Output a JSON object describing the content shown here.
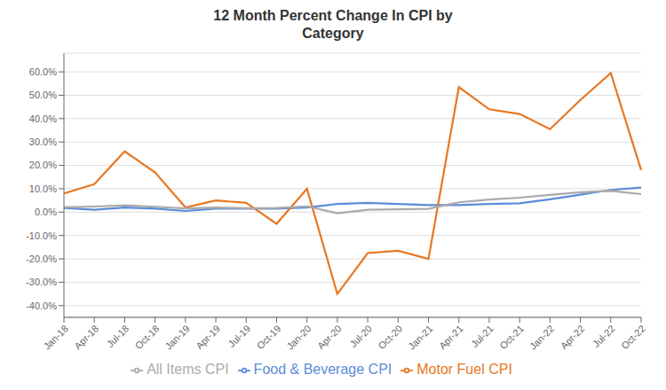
{
  "chart_data": {
    "type": "line",
    "title": "12 Month Percent Change In CPI by\nCategory",
    "categories": [
      "Jan-18",
      "Apr-18",
      "Jul-18",
      "Oct-18",
      "Jan-19",
      "Apr-19",
      "Jul-19",
      "Oct-19",
      "Jan-20",
      "Apr-20",
      "Jul-20",
      "Oct-20",
      "Jan-21",
      "Apr-21",
      "Jul-21",
      "Oct-21",
      "Jan-22",
      "Apr-22",
      "Jul-22",
      "Oct-22"
    ],
    "series": [
      {
        "name": "Food & Beverage CPI",
        "color": "#5b8dd9",
        "values": [
          0.018,
          0.01,
          0.02,
          0.015,
          0.005,
          0.015,
          0.015,
          0.015,
          0.02,
          0.035,
          0.04,
          0.035,
          0.03,
          0.03,
          0.035,
          0.038,
          0.055,
          0.075,
          0.095,
          0.105
        ]
      },
      {
        "name": "Motor Fuel CPI",
        "color": "#e87722",
        "values": [
          0.08,
          0.12,
          0.26,
          0.17,
          0.02,
          0.05,
          0.04,
          -0.05,
          0.1,
          -0.35,
          -0.175,
          -0.165,
          -0.2,
          0.535,
          0.44,
          0.42,
          0.355,
          0.48,
          0.595,
          0.18
        ]
      },
      {
        "name": "All Items CPI",
        "color": "#aaaaaa",
        "values": [
          0.021,
          0.024,
          0.029,
          0.023,
          0.016,
          0.02,
          0.017,
          0.018,
          0.025,
          -0.005,
          0.01,
          0.012,
          0.014,
          0.042,
          0.054,
          0.062,
          0.074,
          0.085,
          0.091,
          0.077
        ]
      }
    ],
    "ylim": [
      -0.45,
      0.68
    ],
    "yticks": [
      {
        "value": -0.4,
        "label": "-40.0%"
      },
      {
        "value": -0.3,
        "label": "-30.0%"
      },
      {
        "value": -0.2,
        "label": "-20.0%"
      },
      {
        "value": -0.1,
        "label": "-10.0%"
      },
      {
        "value": 0.0,
        "label": "0.0%"
      },
      {
        "value": 0.1,
        "label": "10.0%"
      },
      {
        "value": 0.2,
        "label": "20.0%"
      },
      {
        "value": 0.3,
        "label": "30.0%"
      },
      {
        "value": 0.4,
        "label": "40.0%"
      },
      {
        "value": 0.5,
        "label": "50.0%"
      },
      {
        "value": 0.6,
        "label": "60.0%"
      }
    ],
    "grid": true,
    "legend": "bottom"
  }
}
